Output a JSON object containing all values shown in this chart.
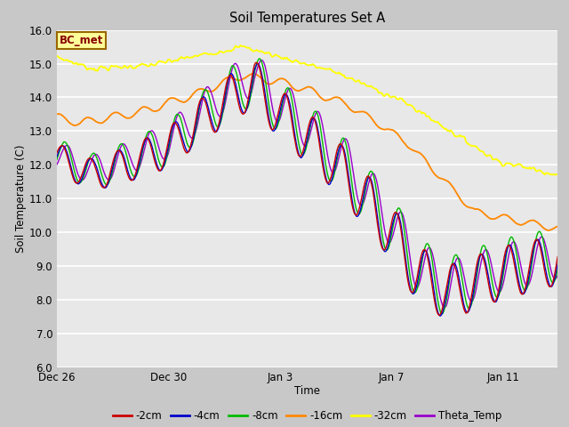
{
  "title": "Soil Temperatures Set A",
  "xlabel": "Time",
  "ylabel": "Soil Temperature (C)",
  "ylim": [
    6.0,
    16.0
  ],
  "yticks": [
    6.0,
    7.0,
    8.0,
    9.0,
    10.0,
    11.0,
    12.0,
    13.0,
    14.0,
    15.0,
    16.0
  ],
  "colors": {
    "2cm": "#cc0000",
    "4cm": "#0000cc",
    "8cm": "#00bb00",
    "16cm": "#ff8800",
    "32cm": "#ffff00",
    "theta": "#9900cc"
  },
  "legend_labels": [
    "-2cm",
    "-4cm",
    "-8cm",
    "-16cm",
    "-32cm",
    "Theta_Temp"
  ],
  "legend_colors": [
    "#cc0000",
    "#0000cc",
    "#00bb00",
    "#ff8800",
    "#ffff00",
    "#9900cc"
  ],
  "fig_bg": "#c8c8c8",
  "plot_bg": "#e8e8e8",
  "grid_color": "#ffffff",
  "annotation_text": "BC_met",
  "annotation_bg": "#ffff99",
  "annotation_border": "#996600",
  "annotation_text_color": "#880000",
  "num_points": 432,
  "xtick_positions": [
    0,
    96,
    192,
    288,
    384
  ],
  "xtick_labels": [
    "Dec 26",
    "Dec 30",
    "Jan 3",
    "Jan 7",
    "Jan 11"
  ]
}
